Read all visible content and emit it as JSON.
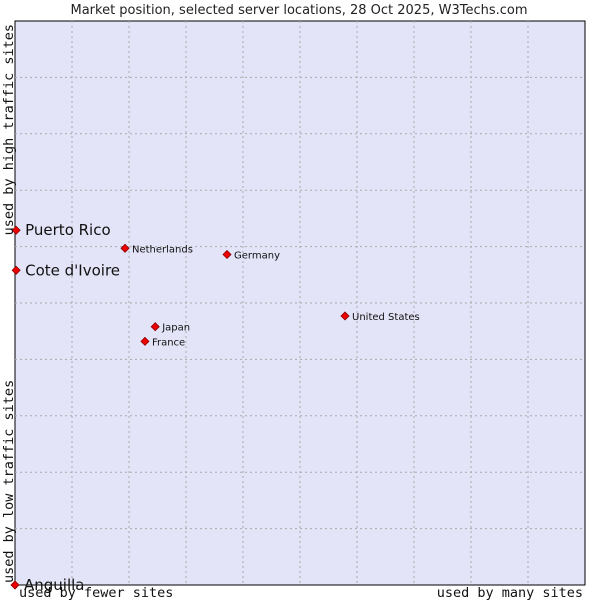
{
  "chart_data": {
    "type": "scatter",
    "title": "Market position, selected server locations, 28 Oct 2025, W3Techs.com",
    "xlabel_left": "used by fewer sites",
    "xlabel_right": "used by many sites",
    "ylabel_bottom": "used by low traffic sites",
    "ylabel_top": "used by high traffic sites",
    "xlim": [
      0,
      100
    ],
    "ylim": [
      0,
      100
    ],
    "grid": true,
    "points": [
      {
        "name": "Puerto Rico",
        "x": 0.2,
        "y": 62.9,
        "highlight": true
      },
      {
        "name": "Cote d'Ivoire",
        "x": 0.2,
        "y": 55.8,
        "highlight": true
      },
      {
        "name": "Anguilla",
        "x": 0.0,
        "y": 0.0,
        "highlight": true
      },
      {
        "name": "Netherlands",
        "x": 19.3,
        "y": 59.7,
        "highlight": false
      },
      {
        "name": "Germany",
        "x": 37.2,
        "y": 58.6,
        "highlight": false
      },
      {
        "name": "United States",
        "x": 57.9,
        "y": 47.7,
        "highlight": false
      },
      {
        "name": "Japan",
        "x": 24.6,
        "y": 45.8,
        "highlight": false
      },
      {
        "name": "France",
        "x": 22.8,
        "y": 43.2,
        "highlight": false
      }
    ]
  }
}
